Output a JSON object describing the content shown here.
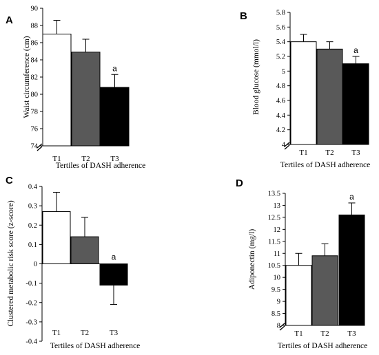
{
  "chart_data": [
    {
      "panel": "A",
      "type": "bar",
      "categories": [
        "T1",
        "T2",
        "T3"
      ],
      "values": [
        87.0,
        84.9,
        80.8
      ],
      "errors": [
        1.6,
        1.5,
        1.5
      ],
      "colors": [
        "#ffffff",
        "#595959",
        "#000000"
      ],
      "significance": [
        "",
        "",
        "a"
      ],
      "xlabel": "Tertiles of DASH adherence",
      "ylabel": "Waist circumference (cm)",
      "ylim": [
        74,
        90
      ],
      "yticks": [
        "74",
        "76",
        "78",
        "80",
        "82",
        "84",
        "86",
        "88",
        "90"
      ],
      "axis_break": true
    },
    {
      "panel": "B",
      "type": "bar",
      "categories": [
        "T1",
        "T2",
        "T3"
      ],
      "values": [
        5.4,
        5.3,
        5.1
      ],
      "errors": [
        0.1,
        0.1,
        0.1
      ],
      "colors": [
        "#ffffff",
        "#595959",
        "#000000"
      ],
      "significance": [
        "",
        "",
        "a"
      ],
      "xlabel": "Tertiles of DASH adherence",
      "ylabel": "Blood glucose (mmol/l)",
      "ylim": [
        4,
        5.8
      ],
      "yticks": [
        "4",
        "4.2",
        "4.4",
        "4.6",
        "4.8",
        "5",
        "5.2",
        "5.4",
        "5.6",
        "5.8"
      ],
      "axis_break": true
    },
    {
      "panel": "C",
      "type": "bar",
      "categories": [
        "T1",
        "T2",
        "T3"
      ],
      "values": [
        0.27,
        0.14,
        -0.11
      ],
      "errors": [
        0.1,
        0.1,
        0.1
      ],
      "colors": [
        "#ffffff",
        "#595959",
        "#000000"
      ],
      "significance": [
        "",
        "",
        "a"
      ],
      "xlabel": "Tertiles of DASH adherence",
      "ylabel": "Clustered metabolic risk score (z-score)",
      "ylim": [
        -0.4,
        0.4
      ],
      "yticks": [
        "-0.4",
        "-0.3",
        "-0.2",
        "-0.1",
        "0",
        "0.1",
        "0.2",
        "0.3",
        "0.4"
      ],
      "axis_break": false
    },
    {
      "panel": "D",
      "type": "bar",
      "categories": [
        "T1",
        "T2",
        "T3"
      ],
      "values": [
        10.5,
        10.9,
        12.6
      ],
      "errors": [
        0.5,
        0.5,
        0.5
      ],
      "colors": [
        "#ffffff",
        "#595959",
        "#000000"
      ],
      "significance": [
        "",
        "",
        "a"
      ],
      "xlabel": "Tertiles of DASH adherence",
      "ylabel": "Adiponectin (mg/l)",
      "ylim": [
        8,
        13.5
      ],
      "yticks": [
        "8",
        "8.5",
        "9",
        "9.5",
        "10",
        "10.5",
        "11",
        "11.5",
        "12",
        "12.5",
        "13",
        "13.5"
      ],
      "axis_break": true
    }
  ]
}
